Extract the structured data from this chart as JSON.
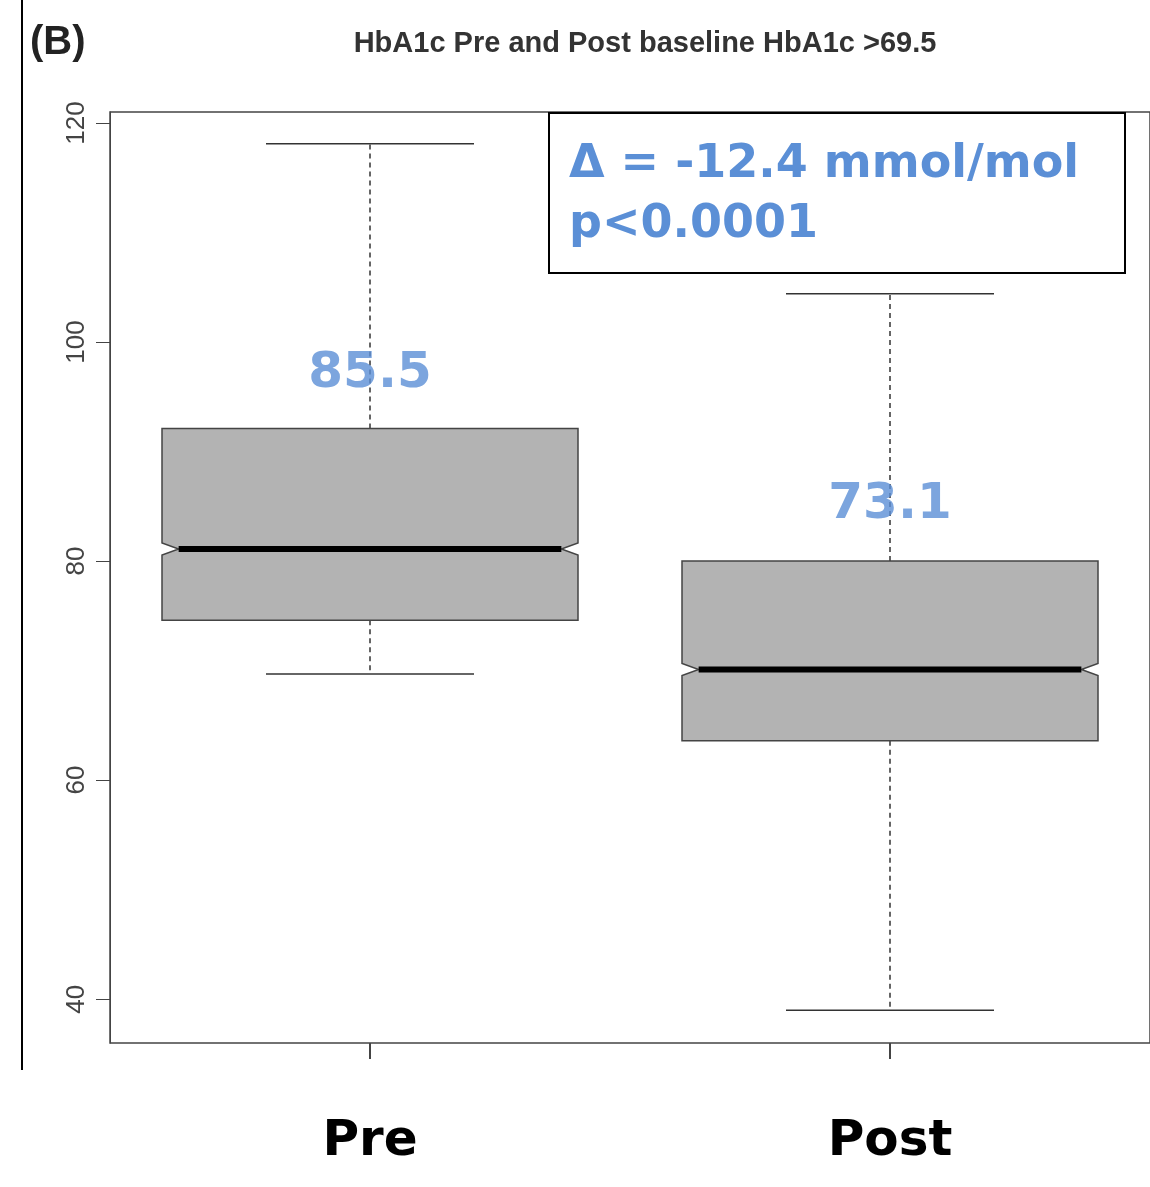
{
  "chart_data": {
    "type": "box",
    "title": "HbA1c Pre and Post baseline HbA1c >69.5",
    "categories": [
      "Pre",
      "Post"
    ],
    "boxes": [
      {
        "low": 69.7,
        "q1": 74.6,
        "median": 81.1,
        "q3": 92.1,
        "high": 118.1
      },
      {
        "low": 39.0,
        "q1": 63.6,
        "median": 70.1,
        "q3": 80.0,
        "high": 104.4
      }
    ],
    "color": "#b3b3b3",
    "ylim": [
      36,
      121
    ],
    "yticks": [
      40,
      60,
      80,
      100,
      120
    ],
    "grid": false,
    "annotations": [
      "(B)",
      "Δ = -12.4 mmol/mol\np<0.0001",
      {
        "text": "85.5",
        "x": "Pre",
        "y": 97.4
      },
      {
        "text": "73.1",
        "x": "Post",
        "y": 85.5
      }
    ]
  }
}
